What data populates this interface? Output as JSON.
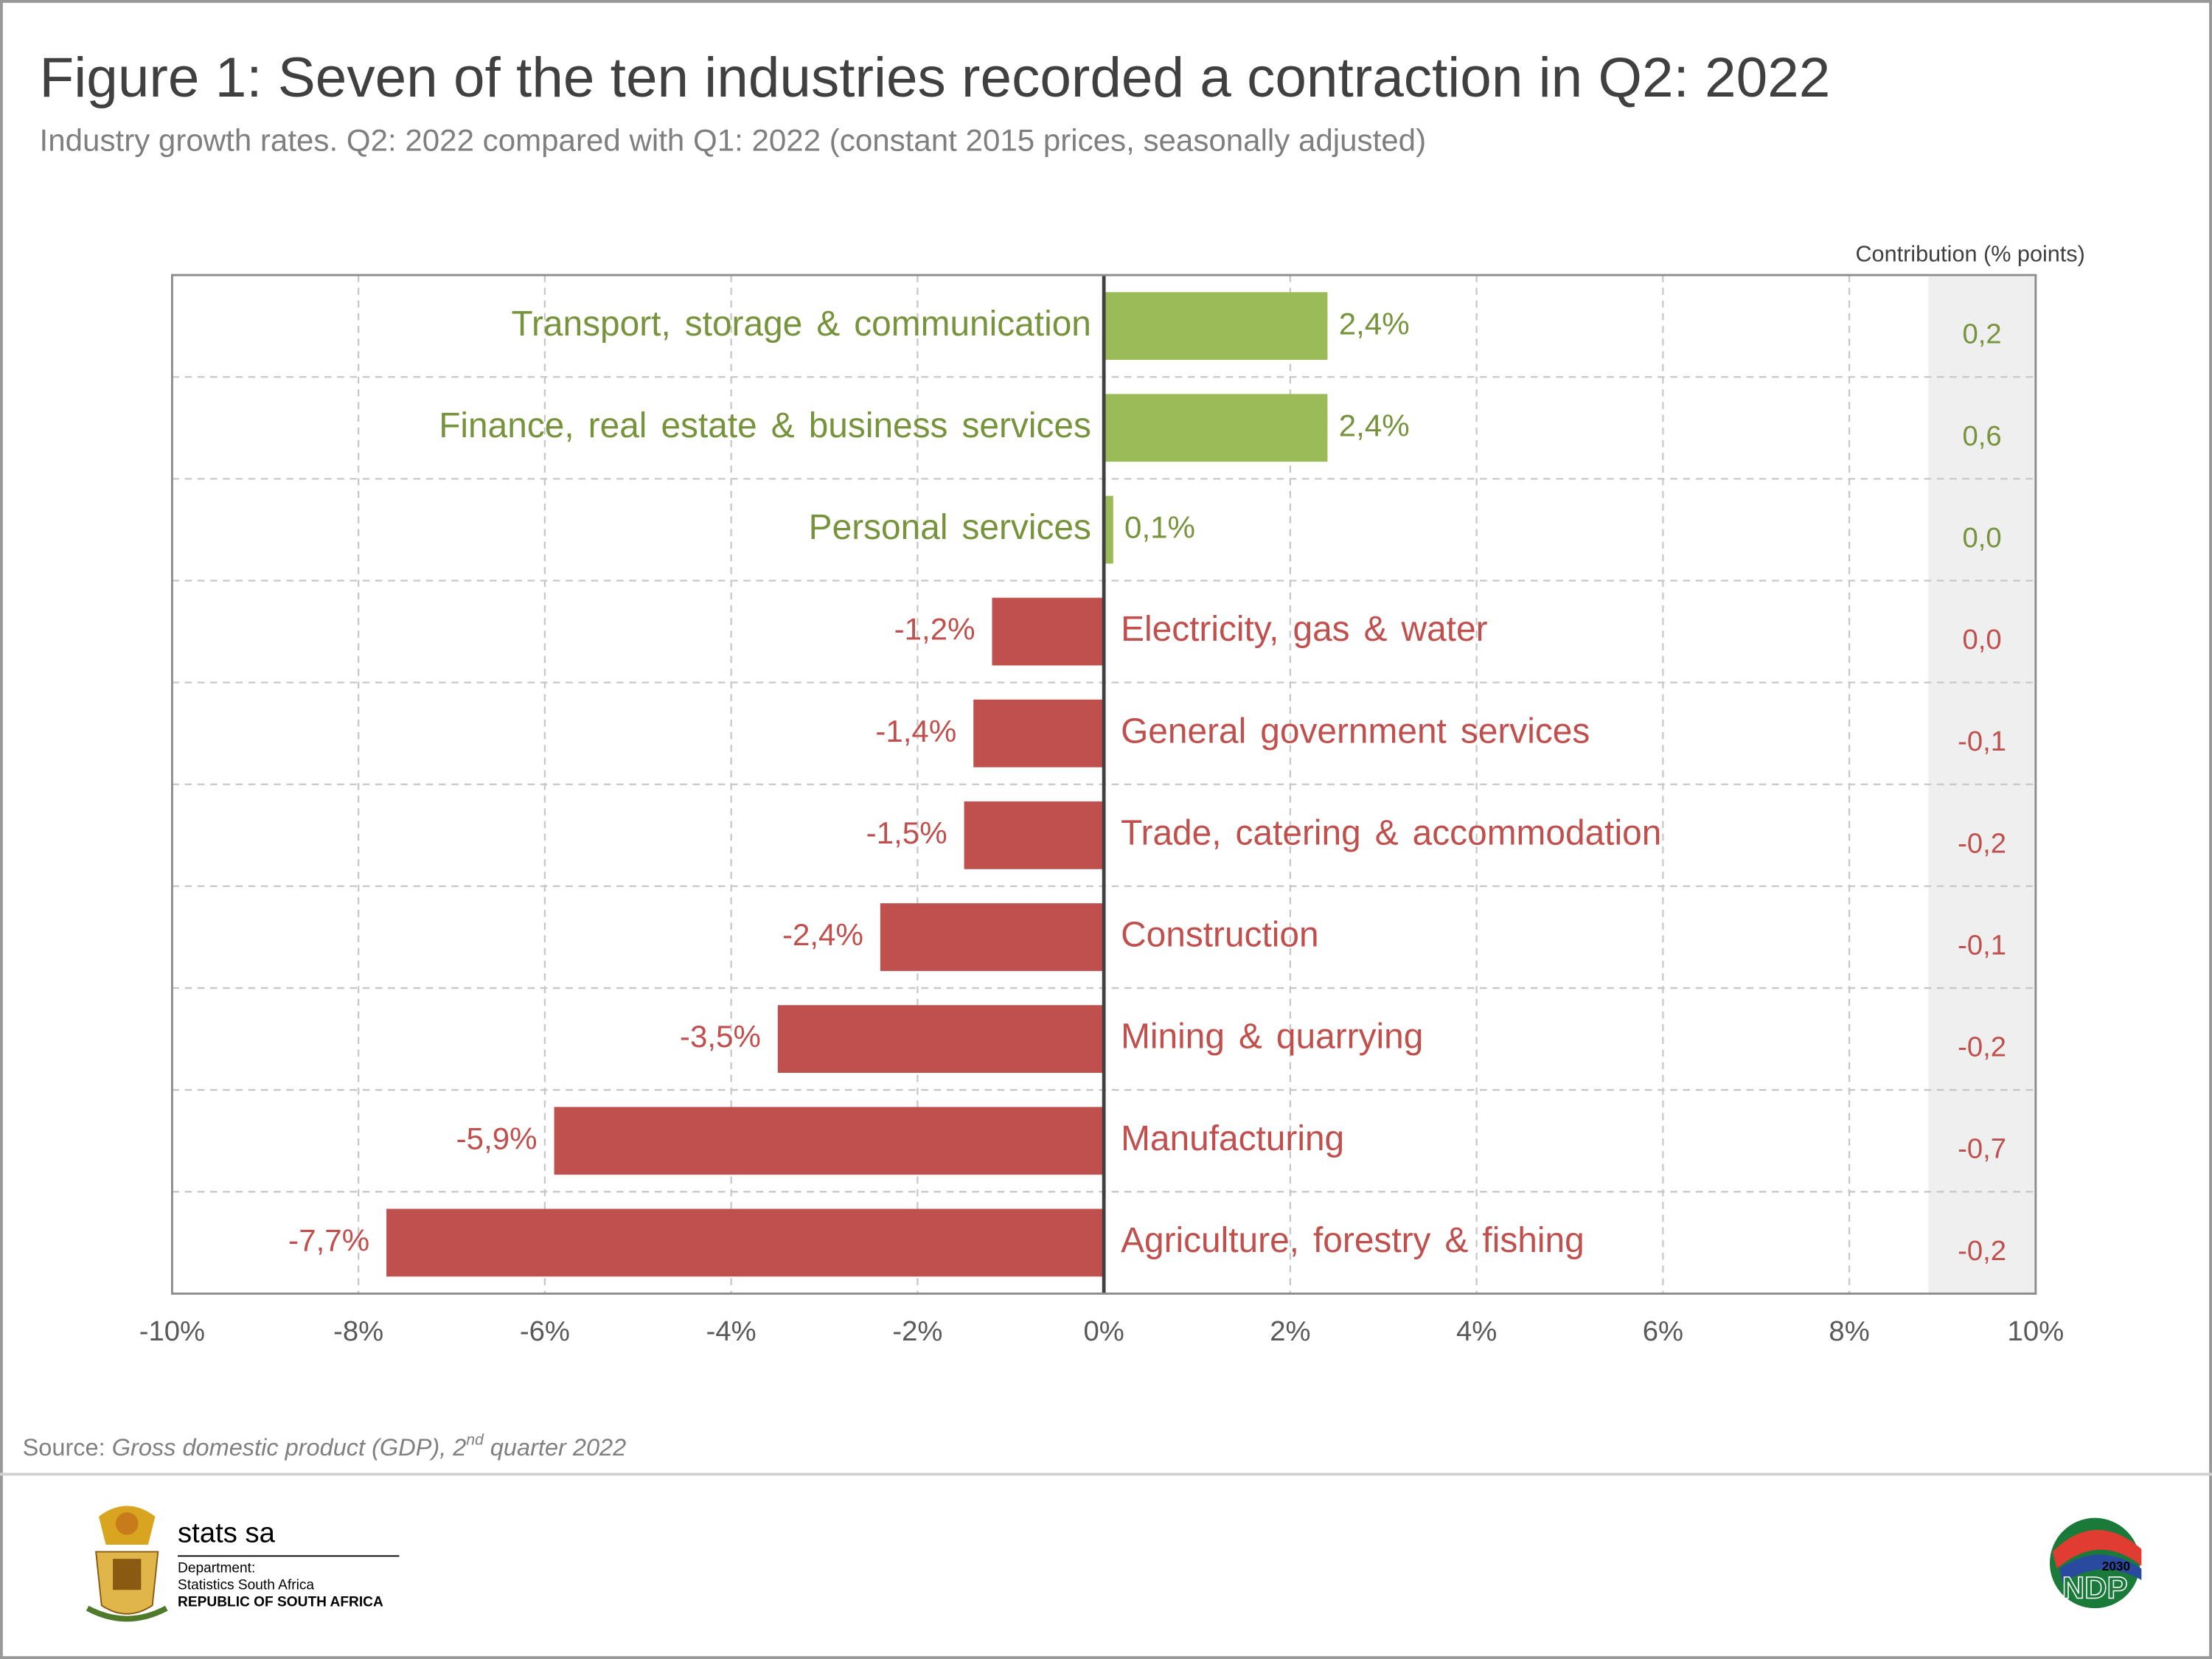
{
  "title": "Figure 1: Seven of the ten industries recorded a contraction in Q2: 2022",
  "subtitle": "Industry growth rates. Q2: 2022 compared with Q1: 2022 (constant 2015 prices, seasonally adjusted)",
  "chart_data": {
    "type": "bar",
    "orientation": "horizontal",
    "categories": [
      "Transport, storage & communication",
      "Finance, real estate & business services",
      "Personal services",
      "Electricity, gas & water",
      "General government services",
      "Trade, catering & accommodation",
      "Construction",
      "Mining & quarrying",
      "Manufacturing",
      "Agriculture, forestry & fishing"
    ],
    "values": [
      2.4,
      2.4,
      0.1,
      -1.2,
      -1.4,
      -1.5,
      -2.4,
      -3.5,
      -5.9,
      -7.7
    ],
    "value_labels": [
      "2,4%",
      "2,4%",
      "0,1%",
      "-1,2%",
      "-1,4%",
      "-1,5%",
      "-2,4%",
      "-3,5%",
      "-5,9%",
      "-7,7%"
    ],
    "colors": {
      "positive": "#9bbb59",
      "negative": "#c0504d",
      "positive_text": "#77933c",
      "negative_text": "#c0504d"
    },
    "xlim": [
      -10,
      10
    ],
    "xticks": [
      {
        "value": -10,
        "label": "-10%"
      },
      {
        "value": -8,
        "label": "-8%"
      },
      {
        "value": -6,
        "label": "-6%"
      },
      {
        "value": -4,
        "label": "-4%"
      },
      {
        "value": -2,
        "label": "-2%"
      },
      {
        "value": 0,
        "label": "0%"
      },
      {
        "value": 2,
        "label": "2%"
      },
      {
        "value": 4,
        "label": "4%"
      },
      {
        "value": 6,
        "label": "6%"
      },
      {
        "value": 8,
        "label": "8%"
      },
      {
        "value": 10,
        "label": "10%"
      }
    ],
    "grid": true,
    "contribution": {
      "title": "Contribution (% points)",
      "values": [
        0.2,
        0.6,
        0.0,
        0.0,
        -0.1,
        -0.2,
        -0.1,
        -0.2,
        -0.7,
        -0.2
      ],
      "value_labels": [
        "0,2",
        "0,6",
        "0,0",
        "0,0",
        "-0,1",
        "-0,2",
        "-0,1",
        "-0,2",
        "-0,7",
        "-0,2"
      ]
    }
  },
  "source": {
    "prefix": "Source:",
    "title": "Gross domestic product (GDP), 2",
    "superscript": "nd",
    "suffix": "quarter 2022"
  },
  "footer": {
    "brand": "stats sa",
    "department": "Department:",
    "agency": "Statistics South Africa",
    "country": "REPUBLIC OF SOUTH AFRICA",
    "ndp": "NDP",
    "ndp_year": "2030"
  }
}
